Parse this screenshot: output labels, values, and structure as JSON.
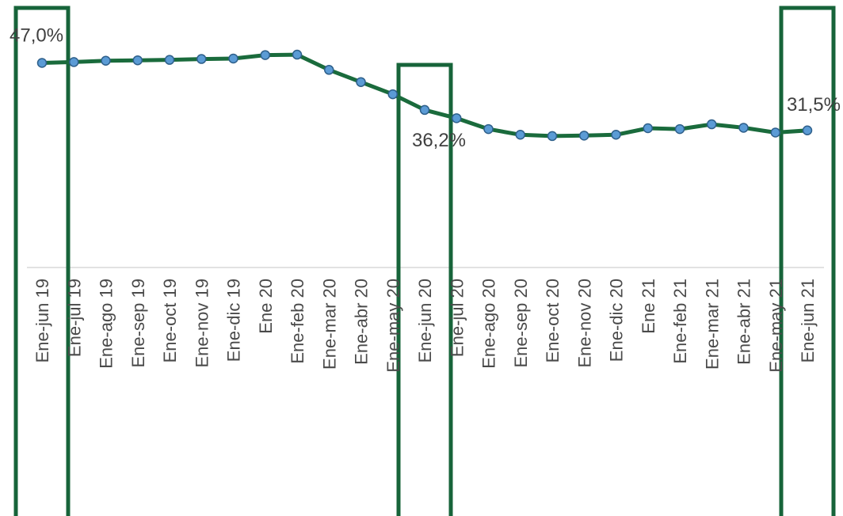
{
  "chart_data": {
    "type": "line",
    "categories": [
      "Ene-jun 19",
      "Ene-jul 19",
      "Ene-ago 19",
      "Ene-sep 19",
      "Ene-oct 19",
      "Ene-nov 19",
      "Ene-dic 19",
      "Ene 20",
      "Ene-feb 20",
      "Ene-mar 20",
      "Ene-abr 20",
      "Ene-may 20",
      "Ene-jun 20",
      "Ene-jul 20",
      "Ene-ago 20",
      "Ene-sep 20",
      "Ene-oct 20",
      "Ene-nov 20",
      "Ene-dic 20",
      "Ene 21",
      "Ene-feb 21",
      "Ene-mar 21",
      "Ene-abr 21",
      "Ene-may 21",
      "Ene-jun 21"
    ],
    "series": [
      {
        "values": [
          47.0,
          47.2,
          47.5,
          47.6,
          47.7,
          47.9,
          48.0,
          48.8,
          48.9,
          45.4,
          42.6,
          39.8,
          36.2,
          34.3,
          31.8,
          30.5,
          30.2,
          30.3,
          30.5,
          32.0,
          31.8,
          32.9,
          32.1,
          31.0,
          31.5
        ]
      }
    ],
    "data_labels": [
      {
        "index": 0,
        "text": "47,0%"
      },
      {
        "index": 12,
        "text": "36,2%"
      },
      {
        "index": 24,
        "text": "31,5%"
      }
    ],
    "ylim": [
      0,
      70
    ],
    "highlight_indices": [
      0,
      12,
      24
    ],
    "line_color": "#1a6b3c",
    "marker_fill": "#5b9bd5",
    "marker_stroke": "#2e5f8a",
    "highlight_color": "#17643a",
    "axis_color": "#d9d9d9",
    "grid": false,
    "legend": false
  }
}
